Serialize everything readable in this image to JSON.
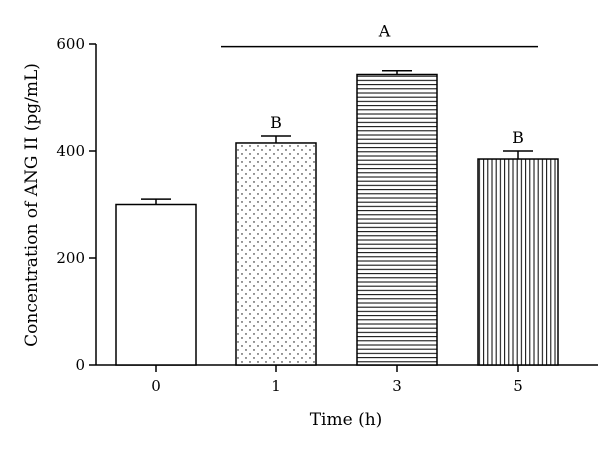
{
  "chart_data": {
    "type": "bar",
    "categories": [
      "0",
      "1",
      "3",
      "5"
    ],
    "values": [
      300,
      415,
      543,
      385
    ],
    "errors": [
      10,
      13,
      7,
      15
    ],
    "patterns": [
      "none",
      "dots",
      "horizontal-lines",
      "vertical-lines"
    ],
    "xlabel": "Time (h)",
    "ylabel": "Concentration of ANG II (pg/mL)",
    "ylim": [
      0,
      600
    ],
    "yticks": [
      0,
      200,
      400,
      600
    ],
    "grid": false,
    "annotations": [
      {
        "text": "A",
        "type": "bracket",
        "from_category": "1",
        "to_category": "5",
        "y": 595
      },
      {
        "text": "B",
        "type": "label",
        "category": "1"
      },
      {
        "text": "B",
        "type": "label",
        "category": "5"
      }
    ]
  },
  "colors": {
    "bar_fill": "#ffffff",
    "bar_stroke": "#000000",
    "pattern": "#000000"
  }
}
